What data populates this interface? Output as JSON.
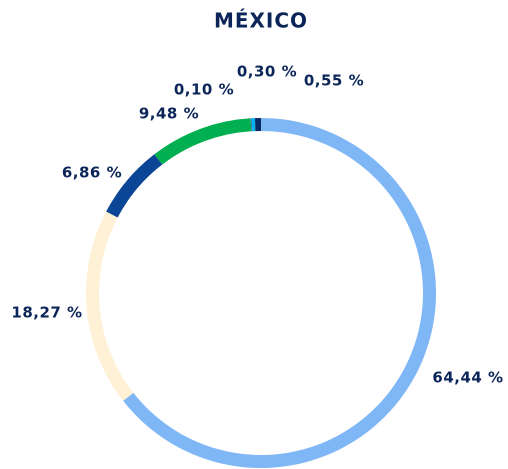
{
  "chart_data": {
    "type": "donut",
    "title": "MÉXICO",
    "categories": [
      null,
      null,
      null,
      null,
      null,
      null,
      null
    ],
    "values": [
      64.44,
      18.27,
      6.86,
      9.48,
      0.1,
      0.3,
      0.55
    ],
    "value_labels": [
      "64,44 %",
      "18,27 %",
      "6,86 %",
      "9,48 %",
      "0,10 %",
      "0,30 %",
      "0,55 %"
    ],
    "colors": [
      "#7fb6f6",
      "#fff1d6",
      "#0b4595",
      "#00b050",
      "#2e75b6",
      "#00b0f0",
      "#0a2a66"
    ]
  }
}
